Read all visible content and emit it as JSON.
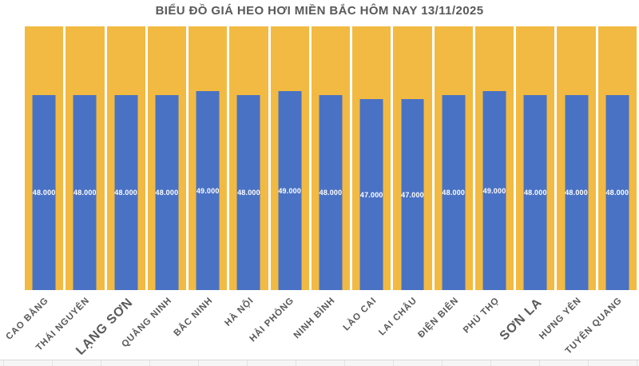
{
  "chart_data": {
    "type": "bar",
    "title": "BIỂU ĐỒ GIÁ HEO HƠI MIỀN BẮC HÔM NAY 13/11/2025",
    "categories": [
      "CAO BẰNG",
      "THÁI NGUYÊN",
      "LẠNG SƠN",
      "QUẢNG NINH",
      "BẮC NINH",
      "HÀ NỘI",
      "HẢI PHÒNG",
      "NINH BÌNH",
      "LÀO CAI",
      "LAI CHÂU",
      "ĐIỆN BIÊN",
      "PHÚ THỌ",
      "SƠN LA",
      "HƯNG YÊN",
      "TUYÊN QUANG"
    ],
    "values": [
      48000,
      48000,
      48000,
      48000,
      49000,
      48000,
      49000,
      48000,
      47000,
      47000,
      48000,
      49000,
      48000,
      48000,
      48000
    ],
    "value_labels": [
      "48.000",
      "48.000",
      "48.000",
      "48.000",
      "49.000",
      "48.000",
      "49.000",
      "48.000",
      "47.000",
      "47.000",
      "48.000",
      "49.000",
      "48.000",
      "48.000",
      "48.000"
    ],
    "xlabel": "",
    "ylabel": "",
    "ylim": [
      0,
      65000
    ],
    "grid": false,
    "legend": "none",
    "emphasized_category_indexes": [
      2,
      12
    ],
    "colors": {
      "bar": "#4A72C4",
      "column_background": "#F2BA42",
      "value_label_text": "#FFFFFF",
      "axis_label_text": "#595959",
      "title_text": "#595959"
    }
  }
}
